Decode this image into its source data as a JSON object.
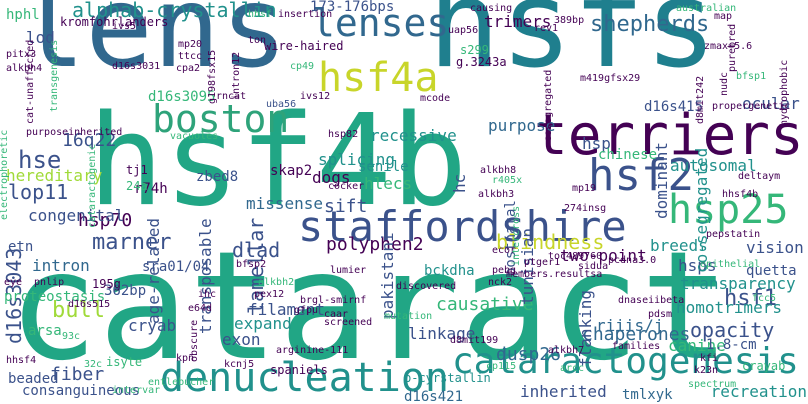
{
  "palette": {
    "purple": "#440154",
    "indigo": "#3b528b",
    "blue": "#31688e",
    "teal": "#21918c",
    "green": "#35b779",
    "lime": "#a0da39",
    "yellow": "#c8d52a",
    "seagreen": "#2ea37a"
  },
  "words": [
    {
      "text": "cataract",
      "color": "#21a685"
    },
    {
      "text": "hsf4b",
      "color": "#21a685"
    },
    {
      "text": "lens",
      "color": "#31688e"
    },
    {
      "text": "hsfs",
      "color": "#1f7f8e"
    },
    {
      "text": "terriers",
      "color": "#440154"
    },
    {
      "text": "staffordshire",
      "color": "#3b528b"
    },
    {
      "text": "denucleation",
      "color": "#21918c"
    },
    {
      "text": "cataractogenesis",
      "color": "#21918c"
    },
    {
      "text": "hsf4a",
      "color": "#c8d52a"
    },
    {
      "text": "boston",
      "color": "#2ea37a"
    },
    {
      "text": "lenses",
      "color": "#31688e"
    },
    {
      "text": "hsf2",
      "color": "#3b528b"
    },
    {
      "text": "hsp25",
      "color": "#35b779"
    },
    {
      "text": "shepherds",
      "color": "#31688e"
    },
    {
      "text": "alphab-crystallin",
      "color": "#21918c"
    },
    {
      "text": "marner",
      "color": "#3b528b"
    },
    {
      "text": "hse",
      "color": "#3b528b"
    },
    {
      "text": "16q22",
      "color": "#3b528b"
    },
    {
      "text": "lop11",
      "color": "#3b528b"
    },
    {
      "text": "hsp70",
      "color": "#440154"
    },
    {
      "text": "d16s3043",
      "color": "#3b528b"
    },
    {
      "text": "fiber",
      "color": "#3b528b"
    },
    {
      "text": "bull",
      "color": "#a0da39"
    },
    {
      "text": "blindness",
      "color": "#c8d52a"
    },
    {
      "text": "dlad",
      "color": "#3b528b"
    },
    {
      "text": "lamellar",
      "color": "#3b528b"
    },
    {
      "text": "sift",
      "color": "#3b528b"
    },
    {
      "text": "polyphen2",
      "color": "#440154"
    },
    {
      "text": "causative",
      "color": "#35b779"
    },
    {
      "text": "hsf1",
      "color": "#3b528b"
    },
    {
      "text": "opacity",
      "color": "#3b528b"
    },
    {
      "text": "homotrimers",
      "color": "#21918c"
    },
    {
      "text": "chaperones",
      "color": "#31688e"
    },
    {
      "text": "dusp26",
      "color": "#31688e"
    },
    {
      "text": "inherited",
      "color": "#3b528b"
    },
    {
      "text": "expand",
      "color": "#21918c"
    },
    {
      "text": "recreation",
      "color": "#21918c"
    },
    {
      "text": "hsps",
      "color": "#3b528b"
    },
    {
      "text": "autosomal",
      "color": "#21918c"
    },
    {
      "text": "two-point",
      "color": "#440154"
    },
    {
      "text": "vision",
      "color": "#3b528b"
    },
    {
      "text": "breeds",
      "color": "#21918c"
    },
    {
      "text": "transparency",
      "color": "#21918c"
    },
    {
      "text": "purpose",
      "color": "#31688e"
    },
    {
      "text": "trimers",
      "color": "#440154"
    },
    {
      "text": "senile",
      "color": "#21918c"
    },
    {
      "text": "hlecs",
      "color": "#35b779"
    },
    {
      "text": "recessive",
      "color": "#21918c"
    },
    {
      "text": "hereditary",
      "color": "#a0da39"
    },
    {
      "text": "congenital",
      "color": "#3b528b"
    },
    {
      "text": "missense",
      "color": "#31688e"
    },
    {
      "text": "splicing",
      "color": "#21918c"
    },
    {
      "text": "intron",
      "color": "#31688e"
    },
    {
      "text": "sra01/04",
      "color": "#3b528b"
    },
    {
      "text": "362bp",
      "color": "#3b528b"
    },
    {
      "text": "dogs",
      "color": "#440154"
    },
    {
      "text": "filament",
      "color": "#3b528b"
    },
    {
      "text": "cryab",
      "color": "#3b528b"
    },
    {
      "text": "exon",
      "color": "#3b528b"
    },
    {
      "text": "linkage",
      "color": "#3b528b"
    },
    {
      "text": "flanking",
      "color": "#3b528b"
    },
    {
      "text": "riiis/j",
      "color": "#31688e"
    },
    {
      "text": "canine",
      "color": "#35b779"
    },
    {
      "text": "1.8-cm",
      "color": "#3b528b"
    },
    {
      "text": "quetta",
      "color": "#3b528b"
    },
    {
      "text": "consanguineous",
      "color": "#3b528b"
    },
    {
      "text": "beaded",
      "color": "#3b528b"
    },
    {
      "text": "pakistani",
      "color": "#3b528b"
    },
    {
      "text": "b-cyrstallin",
      "color": "#21918c"
    },
    {
      "text": "d16s421",
      "color": "#31688e"
    },
    {
      "text": "tmlxyk",
      "color": "#31688e"
    },
    {
      "text": "crayab",
      "color": "#35b779"
    },
    {
      "text": "ocular",
      "color": "#3b528b"
    },
    {
      "text": "hsp",
      "color": "#3b528b"
    },
    {
      "text": "chinese",
      "color": "#35b779"
    },
    {
      "text": "tunisian",
      "color": "#3b528b"
    },
    {
      "text": "postnatal",
      "color": "#3b528b"
    },
    {
      "text": "hc",
      "color": "#3b528b"
    },
    {
      "text": "age-related",
      "color": "#3b528b"
    },
    {
      "text": "transposable",
      "color": "#3b528b"
    },
    {
      "text": "d16s3095",
      "color": "#35b779"
    },
    {
      "text": "dominant",
      "color": "#3b528b"
    },
    {
      "text": "co-segregated",
      "color": "#21918c"
    },
    {
      "text": "d16s415",
      "color": "#3b528b"
    },
    {
      "text": "hphl",
      "color": "#35b779"
    },
    {
      "text": "lod",
      "color": "#3b528b"
    },
    {
      "text": "etn",
      "color": "#3b528b"
    },
    {
      "text": "proteostasis",
      "color": "#35b779"
    },
    {
      "text": "spaniels",
      "color": "#440154"
    },
    {
      "text": "arsa",
      "color": "#35b779"
    },
    {
      "text": "bckdha",
      "color": "#21918c"
    },
    {
      "text": "fcc5",
      "color": "#35b779"
    },
    {
      "text": "zbed8",
      "color": "#3b528b"
    },
    {
      "text": "skap2",
      "color": "#440154"
    },
    {
      "text": "r74h",
      "color": "#440154"
    },
    {
      "text": "tj1",
      "color": "#440154"
    },
    {
      "text": "24a",
      "color": "#35b779"
    },
    {
      "text": "195g",
      "color": "#440154"
    },
    {
      "text": "s299",
      "color": "#35b779"
    },
    {
      "text": "g.3243a",
      "color": "#440154"
    },
    {
      "text": "173-176bps",
      "color": "#3b528b"
    },
    {
      "text": "kromfohrlanders",
      "color": "#440154"
    },
    {
      "text": "ivs5",
      "color": "#440154"
    },
    {
      "text": "mp20",
      "color": "#440154"
    },
    {
      "text": "ttcc",
      "color": "#440154"
    },
    {
      "text": "cpa2",
      "color": "#440154"
    },
    {
      "text": "rncat",
      "color": "#440154"
    },
    {
      "text": "uba56",
      "color": "#3b528b"
    },
    {
      "text": "ivs12",
      "color": "#440154"
    },
    {
      "text": "mcode",
      "color": "#440154"
    },
    {
      "text": "hsp82",
      "color": "#440154"
    },
    {
      "text": "cocker",
      "color": "#440154"
    },
    {
      "text": "wire-haired",
      "color": "#440154"
    },
    {
      "text": "ton",
      "color": "#440154"
    },
    {
      "text": "389bp",
      "color": "#440154"
    },
    {
      "text": "uap56",
      "color": "#440154"
    },
    {
      "text": "rev1",
      "color": "#440154"
    },
    {
      "text": "zmax=5.6",
      "color": "#440154"
    },
    {
      "text": "bfsp1",
      "color": "#35b779"
    },
    {
      "text": "pitx3",
      "color": "#440154"
    },
    {
      "text": "alkbh4",
      "color": "#440154"
    },
    {
      "text": "d16s3031",
      "color": "#440154"
    },
    {
      "text": "cp49",
      "color": "#35b779"
    },
    {
      "text": "propergenetic",
      "color": "#440154"
    },
    {
      "text": "epithelial",
      "color": "#35b779"
    },
    {
      "text": "dnaseiibeta",
      "color": "#440154"
    },
    {
      "text": "pdsm",
      "color": "#440154"
    },
    {
      "text": "caar",
      "color": "#440154"
    },
    {
      "text": "d8mit199",
      "color": "#440154"
    },
    {
      "text": "alkbh7",
      "color": "#440154"
    },
    {
      "text": "arcc",
      "color": "#35b779"
    },
    {
      "text": "cp115",
      "color": "#35b779"
    },
    {
      "text": "families",
      "color": "#440154"
    },
    {
      "text": "kfi",
      "color": "#440154"
    },
    {
      "text": "k23n",
      "color": "#440154"
    },
    {
      "text": "spectrum",
      "color": "#35b779"
    },
    {
      "text": "intervar",
      "color": "#35b779"
    },
    {
      "text": "entlebucher",
      "color": "#35b779"
    },
    {
      "text": "kpn",
      "color": "#440154"
    },
    {
      "text": "isyte",
      "color": "#35b779"
    },
    {
      "text": "kcnj5",
      "color": "#440154"
    },
    {
      "text": "32c",
      "color": "#35b779"
    },
    {
      "text": "93c",
      "color": "#35b779"
    },
    {
      "text": "hhsf4",
      "color": "#440154"
    },
    {
      "text": "d16s515",
      "color": "#440154"
    },
    {
      "text": "pnlip",
      "color": "#440154"
    },
    {
      "text": "eye",
      "color": "#440154"
    },
    {
      "text": "ihc",
      "color": "#440154"
    },
    {
      "text": "alkbh2",
      "color": "#35b779"
    },
    {
      "text": "pex12",
      "color": "#440154"
    },
    {
      "text": "e64d",
      "color": "#440154"
    },
    {
      "text": "bfsp2",
      "color": "#440154"
    },
    {
      "text": "gfpu",
      "color": "#440154"
    },
    {
      "text": "screened",
      "color": "#440154"
    },
    {
      "text": "mutation",
      "color": "#35b779"
    },
    {
      "text": "arginine-111",
      "color": "#440154"
    },
    {
      "text": "discovered",
      "color": "#440154"
    },
    {
      "text": "mp19",
      "color": "#440154"
    },
    {
      "text": "274insg",
      "color": "#440154"
    },
    {
      "text": "alkbh8",
      "color": "#440154"
    },
    {
      "text": "alkbh3",
      "color": "#440154"
    },
    {
      "text": "r405x",
      "color": "#35b779"
    },
    {
      "text": "ecor",
      "color": "#440154"
    },
    {
      "text": "ptger1",
      "color": "#440154"
    },
    {
      "text": "members.resultsa",
      "color": "#440154"
    },
    {
      "text": "pebg",
      "color": "#440154"
    },
    {
      "text": "nck2",
      "color": "#440154"
    },
    {
      "text": "hhsf4b",
      "color": "#440154"
    },
    {
      "text": "pepstatin",
      "color": "#440154"
    },
    {
      "text": "deltaym",
      "color": "#440154"
    },
    {
      "text": "pcdna3.0",
      "color": "#440154"
    },
    {
      "text": "sidua",
      "color": "#440154"
    },
    {
      "text": "causing",
      "color": "#440154"
    },
    {
      "text": "insertion",
      "color": "#440154"
    },
    {
      "text": "hhsf",
      "color": "#35b779"
    },
    {
      "text": "australian",
      "color": "#35b779"
    },
    {
      "text": "map",
      "color": "#440154"
    },
    {
      "text": "transgenesis",
      "color": "#35b779"
    },
    {
      "text": "cat-unaffected",
      "color": "#440154"
    },
    {
      "text": "g198fsx15",
      "color": "#440154"
    },
    {
      "text": "intron12",
      "color": "#440154"
    },
    {
      "text": "d8mit242",
      "color": "#440154"
    },
    {
      "text": "cosegregated",
      "color": "#440154"
    },
    {
      "text": "m419gfsx29",
      "color": "#440154"
    },
    {
      "text": "hydrophobic",
      "color": "#440154"
    },
    {
      "text": "purposeinherited",
      "color": "#440154"
    },
    {
      "text": "vacuoles",
      "color": "#35b779"
    },
    {
      "text": "electrophoretic",
      "color": "#35b779"
    },
    {
      "text": "cataractogenic",
      "color": "#35b779"
    },
    {
      "text": "intercross",
      "color": "#35b779"
    },
    {
      "text": "toc489760",
      "color": "#440154"
    },
    {
      "text": "lumier",
      "color": "#440154"
    },
    {
      "text": "obscure",
      "color": "#440154"
    },
    {
      "text": "brgl-smirnf",
      "color": "#440154"
    },
    {
      "text": "nudc",
      "color": "#440154"
    },
    {
      "text": "purebred",
      "color": "#440154"
    }
  ]
}
